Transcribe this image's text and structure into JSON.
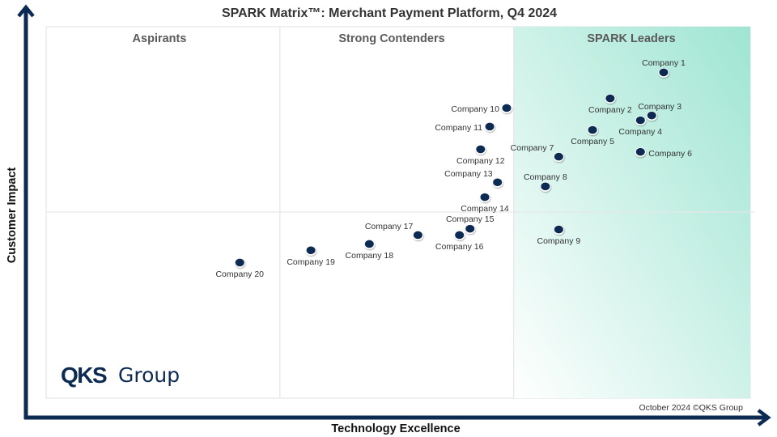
{
  "chart_data": {
    "type": "scatter",
    "title": "SPARK Matrix™: Merchant Payment Platform, Q4 2024",
    "xlabel": "Technology Excellence",
    "ylabel": "Customer Impact",
    "xlim": [
      0,
      10
    ],
    "ylim": [
      0,
      10
    ],
    "grid": false,
    "quadrants": {
      "x_dividers": [
        3.32,
        6.64
      ],
      "y_divider": 5.01,
      "labels": [
        "Aspirants",
        "Strong Contenders",
        "SPARK Leaders"
      ]
    },
    "points": [
      {
        "name": "Company 1",
        "x": 8.77,
        "y": 8.76,
        "label_pos": "above"
      },
      {
        "name": "Company 2",
        "x": 8.01,
        "y": 8.06,
        "label_pos": "below"
      },
      {
        "name": "Company 3",
        "x": 8.6,
        "y": 7.6,
        "label_pos": "above-right"
      },
      {
        "name": "Company 4",
        "x": 8.44,
        "y": 7.47,
        "label_pos": "below"
      },
      {
        "name": "Company 5",
        "x": 7.76,
        "y": 7.21,
        "label_pos": "below"
      },
      {
        "name": "Company 6",
        "x": 8.44,
        "y": 6.62,
        "label_pos": "right"
      },
      {
        "name": "Company 7",
        "x": 7.28,
        "y": 6.49,
        "label_pos": "above-left"
      },
      {
        "name": "Company 8",
        "x": 7.09,
        "y": 5.69,
        "label_pos": "above"
      },
      {
        "name": "Company 9",
        "x": 7.28,
        "y": 4.53,
        "label_pos": "below"
      },
      {
        "name": "Company 10",
        "x": 6.54,
        "y": 7.8,
        "label_pos": "left"
      },
      {
        "name": "Company 11",
        "x": 6.3,
        "y": 7.3,
        "label_pos": "left"
      },
      {
        "name": "Company 12",
        "x": 6.17,
        "y": 6.69,
        "label_pos": "below"
      },
      {
        "name": "Company 13",
        "x": 6.41,
        "y": 5.8,
        "label_pos": "above-left"
      },
      {
        "name": "Company 14",
        "x": 6.23,
        "y": 5.4,
        "label_pos": "below"
      },
      {
        "name": "Company 15",
        "x": 6.02,
        "y": 4.55,
        "label_pos": "above"
      },
      {
        "name": "Company 16",
        "x": 5.87,
        "y": 4.38,
        "label_pos": "below"
      },
      {
        "name": "Company 17",
        "x": 5.28,
        "y": 4.38,
        "label_pos": "above-left"
      },
      {
        "name": "Company 18",
        "x": 4.59,
        "y": 4.14,
        "label_pos": "below"
      },
      {
        "name": "Company 19",
        "x": 3.76,
        "y": 3.97,
        "label_pos": "below"
      },
      {
        "name": "Company 20",
        "x": 2.75,
        "y": 3.64,
        "label_pos": "below"
      }
    ],
    "colors": {
      "marker": "#0d2a52",
      "axis": "#0d2a52",
      "leader_gradient_light": "#ffffff",
      "leader_gradient_dark": "#9fe5d2",
      "divider": "#e6e6e6"
    }
  },
  "branding": {
    "logo_bold": "QKS",
    "logo_regular": "Group",
    "footer": "October 2024 ©QKS Group"
  }
}
